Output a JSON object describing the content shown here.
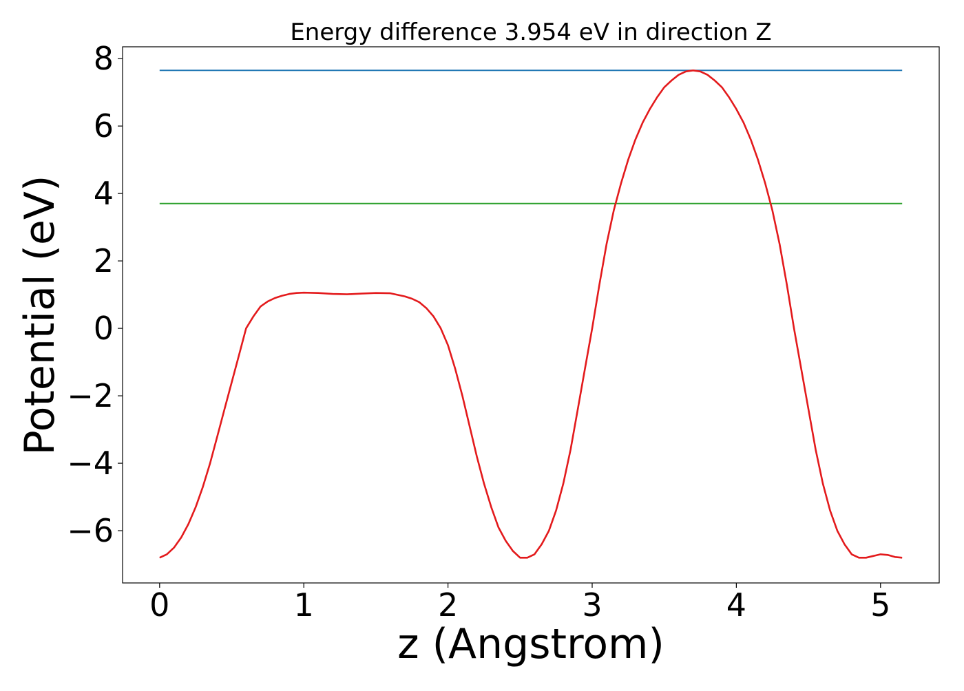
{
  "chart_data": {
    "type": "line",
    "title": "Energy difference 3.954 eV in direction Z",
    "xlabel": "z (Angstrom)",
    "ylabel": "Potential (eV)",
    "xlim": [
      -0.257,
      5.407
    ],
    "ylim": [
      -7.55,
      8.35
    ],
    "x_ticks": [
      0,
      1,
      2,
      3,
      4,
      5
    ],
    "y_ticks": [
      -6,
      -4,
      -2,
      0,
      2,
      4,
      6,
      8
    ],
    "grid": false,
    "legend": "none",
    "series": [
      {
        "color": "#1f77b4",
        "x": [
          0,
          5.15
        ],
        "y": [
          7.65,
          7.65
        ]
      },
      {
        "color": "#2ca02c",
        "x": [
          0,
          5.15
        ],
        "y": [
          3.7,
          3.7
        ]
      },
      {
        "color": "#e31a1c",
        "x": [
          0,
          0.05,
          0.1,
          0.15,
          0.2,
          0.25,
          0.3,
          0.35,
          0.4,
          0.45,
          0.5,
          0.55,
          0.6,
          0.65,
          0.7,
          0.75,
          0.8,
          0.85,
          0.9,
          0.95,
          1.0,
          1.1,
          1.2,
          1.3,
          1.4,
          1.5,
          1.6,
          1.7,
          1.75,
          1.8,
          1.85,
          1.9,
          1.95,
          2.0,
          2.05,
          2.1,
          2.15,
          2.2,
          2.25,
          2.3,
          2.35,
          2.4,
          2.45,
          2.5,
          2.55,
          2.6,
          2.65,
          2.7,
          2.75,
          2.8,
          2.85,
          2.9,
          2.95,
          3.0,
          3.05,
          3.1,
          3.15,
          3.2,
          3.25,
          3.3,
          3.35,
          3.4,
          3.45,
          3.5,
          3.55,
          3.6,
          3.65,
          3.7,
          3.75,
          3.8,
          3.85,
          3.9,
          3.95,
          4.0,
          4.05,
          4.1,
          4.15,
          4.2,
          4.25,
          4.3,
          4.35,
          4.4,
          4.45,
          4.5,
          4.55,
          4.6,
          4.65,
          4.7,
          4.75,
          4.8,
          4.85,
          4.9,
          4.95,
          5.0,
          5.05,
          5.1,
          5.15
        ],
        "y": [
          -6.8,
          -6.7,
          -6.5,
          -6.2,
          -5.8,
          -5.3,
          -4.7,
          -4.0,
          -3.2,
          -2.4,
          -1.6,
          -0.8,
          0.0,
          0.35,
          0.65,
          0.8,
          0.9,
          0.97,
          1.02,
          1.05,
          1.06,
          1.05,
          1.02,
          1.01,
          1.03,
          1.05,
          1.04,
          0.95,
          0.88,
          0.78,
          0.6,
          0.35,
          0.0,
          -0.5,
          -1.2,
          -2.0,
          -2.9,
          -3.8,
          -4.6,
          -5.3,
          -5.9,
          -6.3,
          -6.6,
          -6.8,
          -6.8,
          -6.7,
          -6.4,
          -6.0,
          -5.4,
          -4.6,
          -3.6,
          -2.4,
          -1.2,
          0.0,
          1.3,
          2.5,
          3.5,
          4.3,
          5.0,
          5.6,
          6.1,
          6.5,
          6.85,
          7.15,
          7.35,
          7.52,
          7.62,
          7.65,
          7.62,
          7.52,
          7.35,
          7.15,
          6.85,
          6.5,
          6.1,
          5.6,
          5.0,
          4.3,
          3.5,
          2.5,
          1.3,
          0.0,
          -1.2,
          -2.4,
          -3.6,
          -4.6,
          -5.4,
          -6.0,
          -6.4,
          -6.7,
          -6.8,
          -6.8,
          -6.75,
          -6.7,
          -6.72,
          -6.78,
          -6.8
        ]
      }
    ]
  }
}
